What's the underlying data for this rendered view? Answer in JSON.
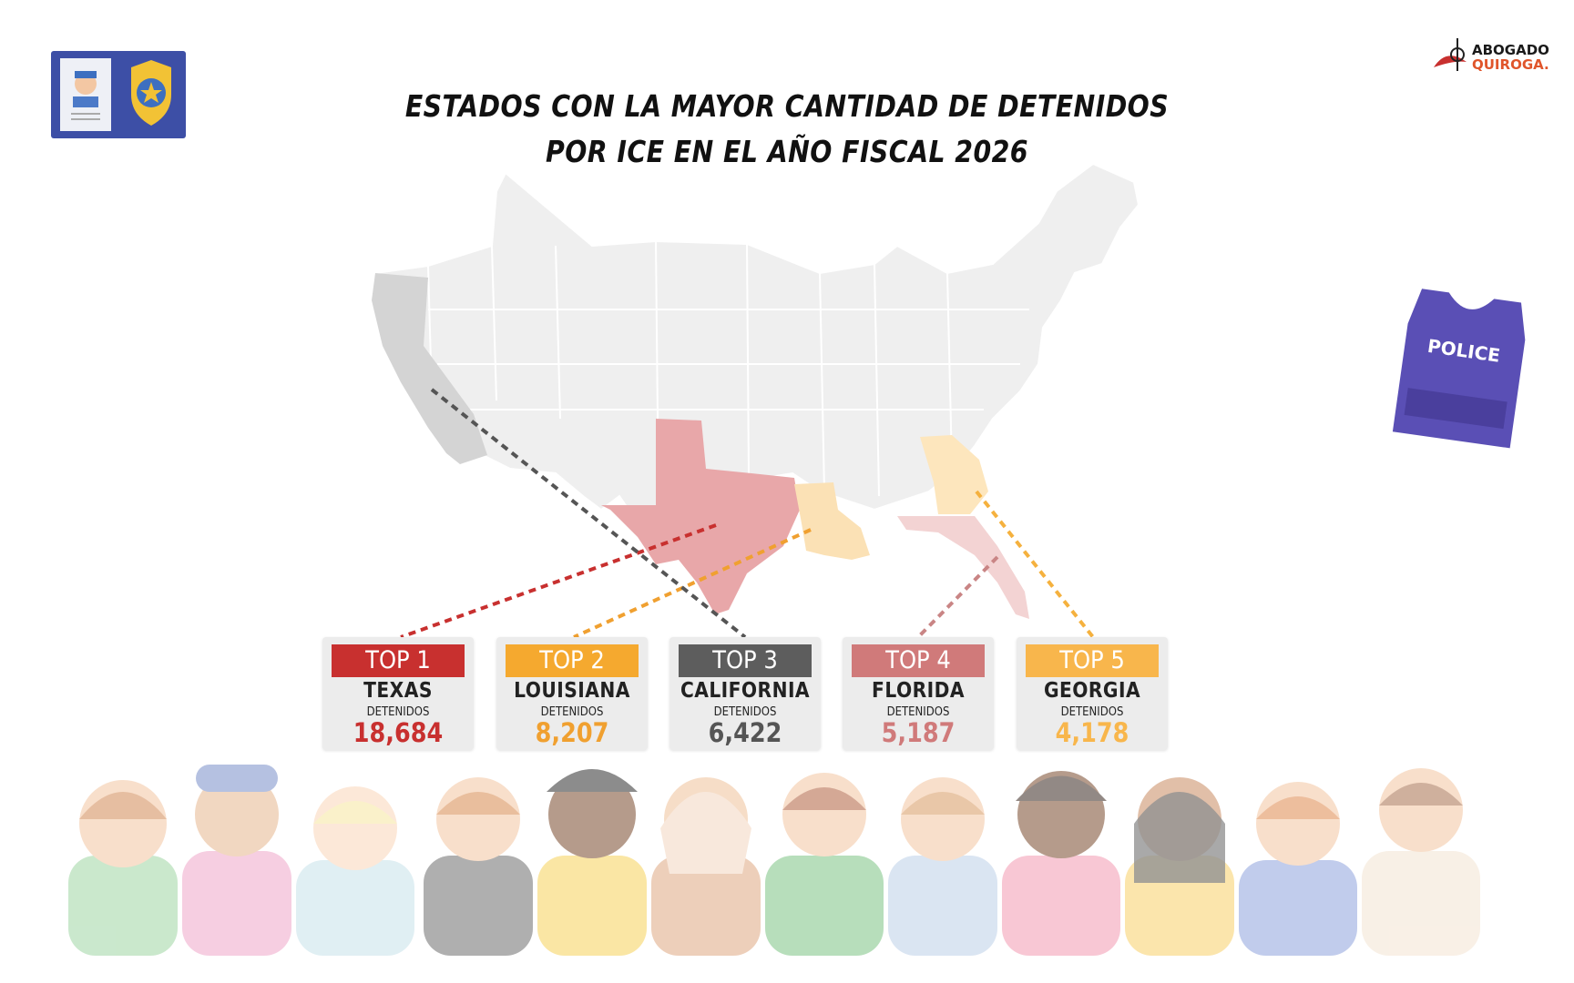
{
  "title": {
    "line1": "ESTADOS CON LA MAYOR CANTIDAD DE DETENIDOS",
    "line2": "POR ICE EN EL AÑO FISCAL 2026"
  },
  "logo": {
    "line1": "ABOGADO",
    "line2": "QUIROGA."
  },
  "vest_label": "POLICE",
  "cards": [
    {
      "rank": "TOP 1",
      "state": "TEXAS",
      "label": "DETENIDOS",
      "value": "18,684",
      "color": "#c8302f",
      "value_color": "#c8302f"
    },
    {
      "rank": "TOP 2",
      "state": "LOUISIANA",
      "label": "DETENIDOS",
      "value": "8,207",
      "color": "#f5a92f",
      "value_color": "#f0a030"
    },
    {
      "rank": "TOP 3",
      "state": "CALIFORNIA",
      "label": "DETENIDOS",
      "value": "6,422",
      "color": "#5d5d5d",
      "value_color": "#555555"
    },
    {
      "rank": "TOP 4",
      "state": "FLORIDA",
      "label": "DETENIDOS",
      "value": "5,187",
      "color": "#d07a7a",
      "value_color": "#d07a7a"
    },
    {
      "rank": "TOP 5",
      "state": "GEORGIA",
      "label": "DETENIDOS",
      "value": "4,178",
      "color": "#f8b64c",
      "value_color": "#f8b64c"
    }
  ],
  "colors": {
    "highlight_texas": "#e8a7a9",
    "highlight_louisiana": "#fbe1b5",
    "highlight_california": "#d4d4d4",
    "map_base": "#efefef"
  },
  "icons": [
    "police-id-card-icon",
    "sheriff-badge-icon",
    "police-vest-icon",
    "abogado-quiroga-logo",
    "children-illustration"
  ]
}
